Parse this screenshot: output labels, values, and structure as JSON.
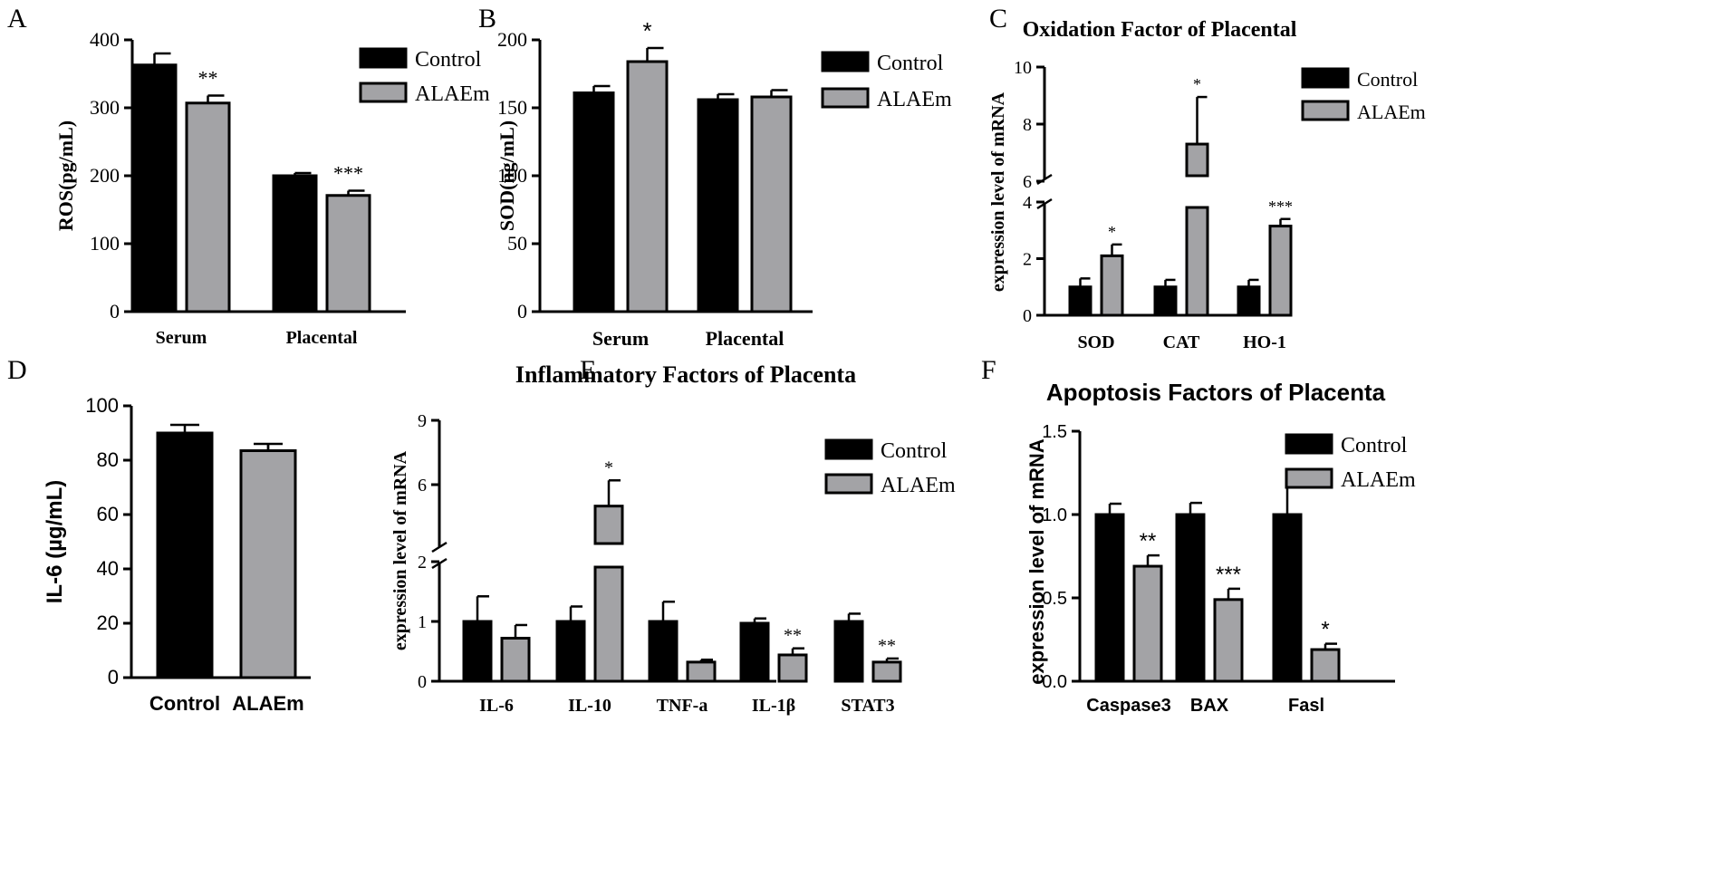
{
  "colors": {
    "control": "#000000",
    "alaem": "#a3a3a6",
    "axis": "#000000",
    "background": "#ffffff"
  },
  "chart_data": [
    {
      "panel": "A",
      "type": "bar",
      "title": "",
      "ylabel": "ROS(pg/mL)",
      "ylim": [
        0,
        400
      ],
      "yticks": [
        0,
        100,
        200,
        300,
        400
      ],
      "categories": [
        "Serum",
        "Placental"
      ],
      "series": [
        {
          "name": "Control",
          "values": [
            363,
            200
          ],
          "errors": [
            17,
            4
          ]
        },
        {
          "name": "ALAEm",
          "values": [
            307,
            171
          ],
          "errors": [
            11,
            7
          ]
        }
      ],
      "annotations": [
        {
          "series": 1,
          "category": 0,
          "text": "**"
        },
        {
          "series": 1,
          "category": 1,
          "text": "***"
        }
      ]
    },
    {
      "panel": "B",
      "type": "bar",
      "title": "",
      "ylabel": "SOD(ng/mL)",
      "ylim": [
        0,
        200
      ],
      "yticks": [
        0,
        50,
        100,
        150,
        200
      ],
      "categories": [
        "Serum",
        "Placental"
      ],
      "series": [
        {
          "name": "Control",
          "values": [
            161,
            156
          ],
          "errors": [
            5,
            4
          ]
        },
        {
          "name": "ALAEm",
          "values": [
            184,
            158
          ],
          "errors": [
            10,
            5
          ]
        }
      ],
      "annotations": [
        {
          "series": 1,
          "category": 0,
          "text": "*"
        }
      ]
    },
    {
      "panel": "C",
      "type": "bar",
      "title": "Oxidation Factor of Placental",
      "ylabel": "expression level of mRNA",
      "ylim": [
        0,
        10
      ],
      "axis_break": [
        4,
        6
      ],
      "lower_ticks": [
        0,
        2,
        4
      ],
      "upper_ticks": [
        6,
        8,
        10
      ],
      "categories": [
        "SOD",
        "CAT",
        "HO-1"
      ],
      "series": [
        {
          "name": "Control",
          "values": [
            1.0,
            1.0,
            1.0
          ],
          "errors": [
            0.3,
            0.25,
            0.25
          ]
        },
        {
          "name": "ALAEm",
          "values": [
            2.1,
            7.3,
            3.15
          ],
          "errors": [
            0.4,
            1.65,
            0.25
          ]
        }
      ],
      "annotations": [
        {
          "series": 1,
          "category": 0,
          "text": "*"
        },
        {
          "series": 1,
          "category": 1,
          "text": "*"
        },
        {
          "series": 1,
          "category": 2,
          "text": "***"
        }
      ]
    },
    {
      "panel": "D",
      "type": "bar",
      "title": "",
      "ylabel": "IL-6 (µg/mL)",
      "ylim": [
        0,
        100
      ],
      "yticks": [
        0,
        20,
        40,
        60,
        80,
        100
      ],
      "categories": [
        "Control",
        "ALAEm"
      ],
      "series": [
        {
          "name": "Control",
          "values": [
            90,
            83.5
          ],
          "errors": [
            3,
            2.5
          ]
        }
      ],
      "annotations": []
    },
    {
      "panel": "E",
      "type": "bar",
      "title": "Inflammatory Factors of Placenta",
      "ylabel": "expression level of mRNA",
      "ylim": [
        0,
        9
      ],
      "axis_break": [
        2,
        3
      ],
      "lower_ticks": [
        0,
        1,
        2
      ],
      "upper_ticks": [
        6,
        9
      ],
      "categories": [
        "IL-6",
        "IL-10",
        "TNF-a",
        "IL-1β",
        "STAT3"
      ],
      "series": [
        {
          "name": "Control",
          "values": [
            1.0,
            1.0,
            1.0,
            0.97,
            1.0
          ],
          "errors": [
            0.42,
            0.25,
            0.33,
            0.08,
            0.13
          ]
        },
        {
          "name": "ALAEm",
          "values": [
            0.72,
            5.0,
            0.32,
            0.44,
            0.32
          ],
          "errors": [
            0.22,
            1.2,
            0.04,
            0.11,
            0.06
          ]
        }
      ],
      "annotations": [
        {
          "series": 1,
          "category": 1,
          "text": "*"
        },
        {
          "series": 1,
          "category": 3,
          "text": "**"
        },
        {
          "series": 1,
          "category": 4,
          "text": "**"
        }
      ]
    },
    {
      "panel": "F",
      "type": "bar",
      "title": "Apoptosis Factors of Placenta",
      "ylabel": "expression level of mRNA",
      "ylim": [
        0,
        1.5
      ],
      "yticks": [
        "0.0",
        "0.5",
        "1.0",
        "1.5"
      ],
      "categories": [
        "Caspase3",
        "BAX",
        "Fasl"
      ],
      "series": [
        {
          "name": "Control",
          "values": [
            1.0,
            1.0,
            1.0
          ],
          "errors": [
            0.065,
            0.07,
            0.27
          ]
        },
        {
          "name": "ALAEm",
          "values": [
            0.69,
            0.49,
            0.19
          ],
          "errors": [
            0.065,
            0.065,
            0.035
          ]
        }
      ],
      "annotations": [
        {
          "series": 1,
          "category": 0,
          "text": "**"
        },
        {
          "series": 1,
          "category": 1,
          "text": "***"
        },
        {
          "series": 1,
          "category": 2,
          "text": "*"
        }
      ]
    }
  ]
}
